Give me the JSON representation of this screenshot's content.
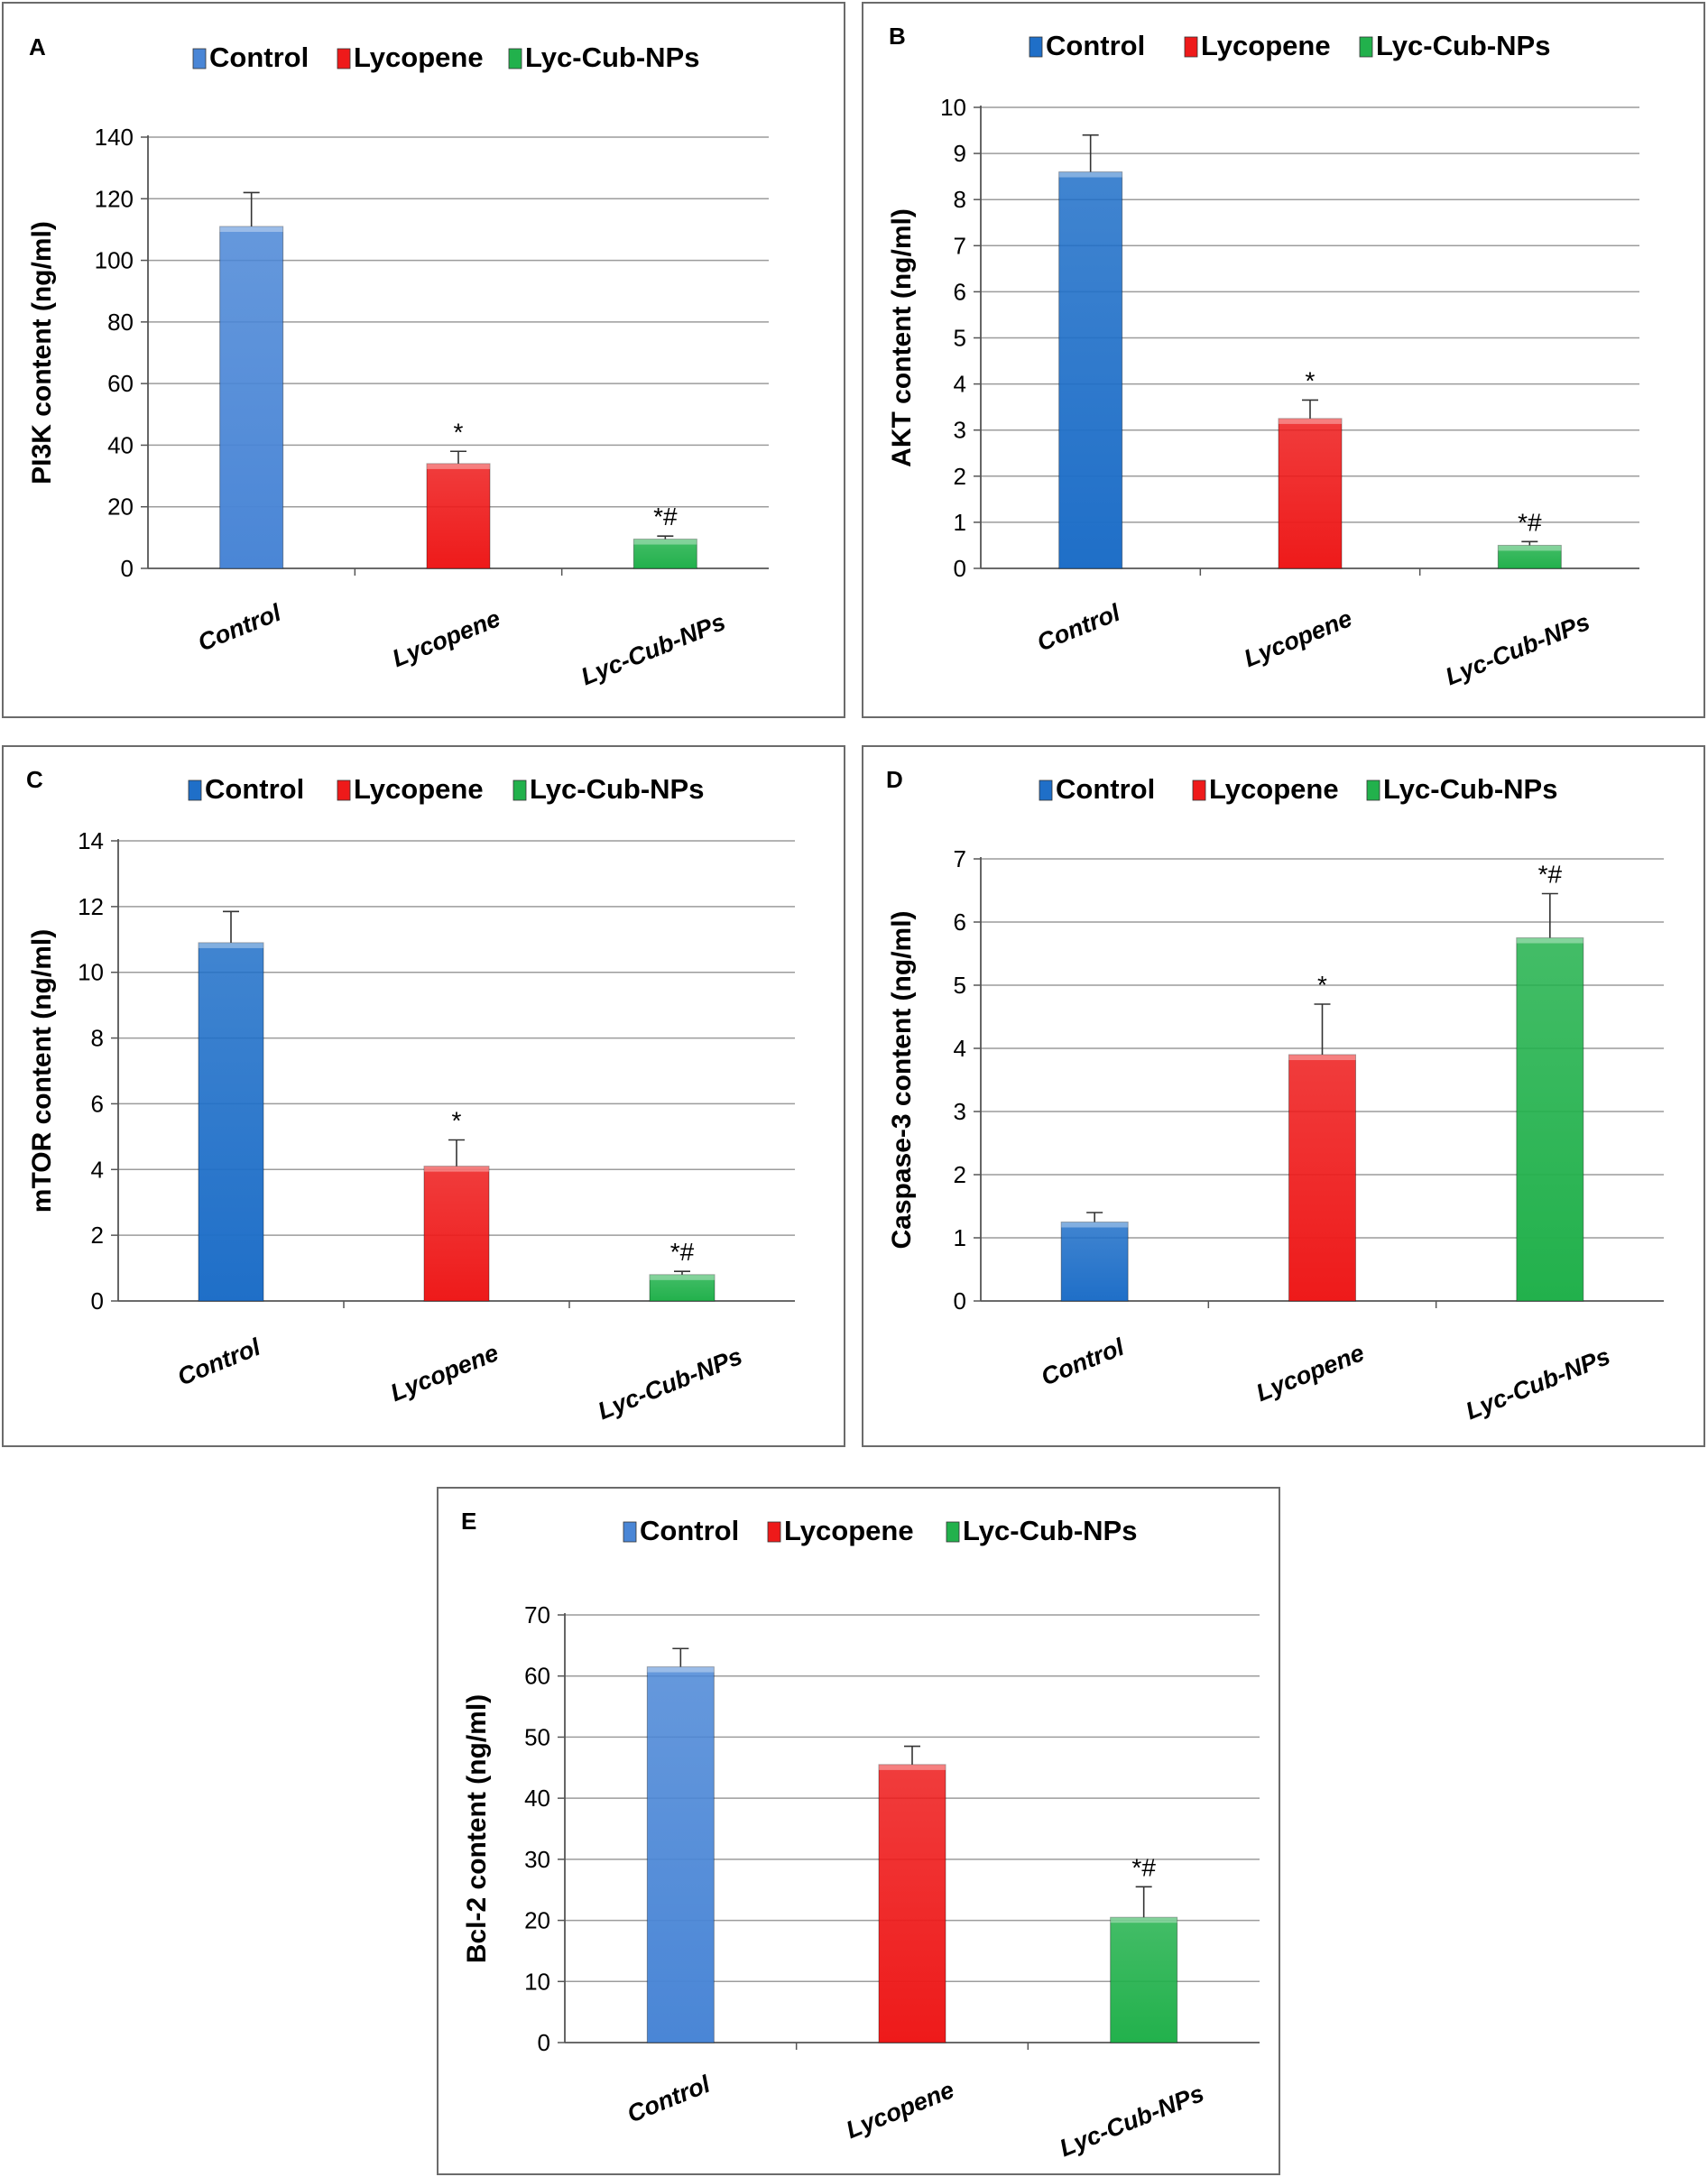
{
  "legend": [
    "Control",
    "Lycopene",
    "Lyc-Cub-NPs"
  ],
  "categories": [
    "Control",
    "Lycopene",
    "Lyc-Cub-NPs"
  ],
  "colors": {
    "control": "#4a86d6",
    "control_alt": "#1f6fc8",
    "lycopene": "#ee1a1a",
    "nps": "#22b14c"
  },
  "chart_data": [
    {
      "id": "A",
      "type": "bar",
      "panel_label": "A",
      "title": "",
      "ylabel": "PI3K content (ng/ml)",
      "categories": [
        "Control",
        "Lycopene",
        "Lyc-Cub-NPs"
      ],
      "values": [
        111,
        34,
        9.5
      ],
      "errors": [
        11,
        4,
        1
      ],
      "annotations": [
        "",
        "*",
        "*#"
      ],
      "ylim": [
        0,
        140
      ],
      "yticks": [
        0,
        20,
        40,
        60,
        80,
        100,
        120,
        140
      ],
      "grid": true
    },
    {
      "id": "B",
      "type": "bar",
      "panel_label": "B",
      "title": "",
      "ylabel": "AKT content (ng/ml)",
      "categories": [
        "Control",
        "Lycopene",
        "Lyc-Cub-NPs"
      ],
      "values": [
        8.6,
        3.25,
        0.5
      ],
      "errors": [
        0.8,
        0.4,
        0.08
      ],
      "annotations": [
        "",
        "*",
        "*#"
      ],
      "ylim": [
        0,
        10
      ],
      "yticks": [
        0,
        1,
        2,
        3,
        4,
        5,
        6,
        7,
        8,
        9,
        10
      ],
      "grid": true
    },
    {
      "id": "C",
      "type": "bar",
      "panel_label": "C",
      "title": "",
      "ylabel": "mTOR content (ng/ml)",
      "categories": [
        "Control",
        "Lycopene",
        "Lyc-Cub-NPs"
      ],
      "values": [
        10.9,
        4.1,
        0.8
      ],
      "errors": [
        0.95,
        0.8,
        0.1
      ],
      "annotations": [
        "",
        "*",
        "*#"
      ],
      "ylim": [
        0,
        14
      ],
      "yticks": [
        0,
        2,
        4,
        6,
        8,
        10,
        12,
        14
      ],
      "grid": true
    },
    {
      "id": "D",
      "type": "bar",
      "panel_label": "D",
      "title": "",
      "ylabel": "Caspase-3 content (ng/ml)",
      "categories": [
        "Control",
        "Lycopene",
        "Lyc-Cub-NPs"
      ],
      "values": [
        1.25,
        3.9,
        5.75
      ],
      "errors": [
        0.15,
        0.8,
        0.7
      ],
      "annotations": [
        "",
        "*",
        "*#"
      ],
      "ylim": [
        0,
        7
      ],
      "yticks": [
        0,
        1,
        2,
        3,
        4,
        5,
        6,
        7
      ],
      "grid": true
    },
    {
      "id": "E",
      "type": "bar",
      "panel_label": "E",
      "title": "",
      "ylabel": "Bcl-2 content (ng/ml)",
      "categories": [
        "Control",
        "Lycopene",
        "Lyc-Cub-NPs"
      ],
      "values": [
        61.5,
        45.5,
        20.5
      ],
      "errors": [
        3,
        3,
        5
      ],
      "annotations": [
        "",
        "",
        "*#"
      ],
      "ylim": [
        0,
        70
      ],
      "yticks": [
        0,
        10,
        20,
        30,
        40,
        50,
        60,
        70
      ],
      "grid": true
    }
  ]
}
